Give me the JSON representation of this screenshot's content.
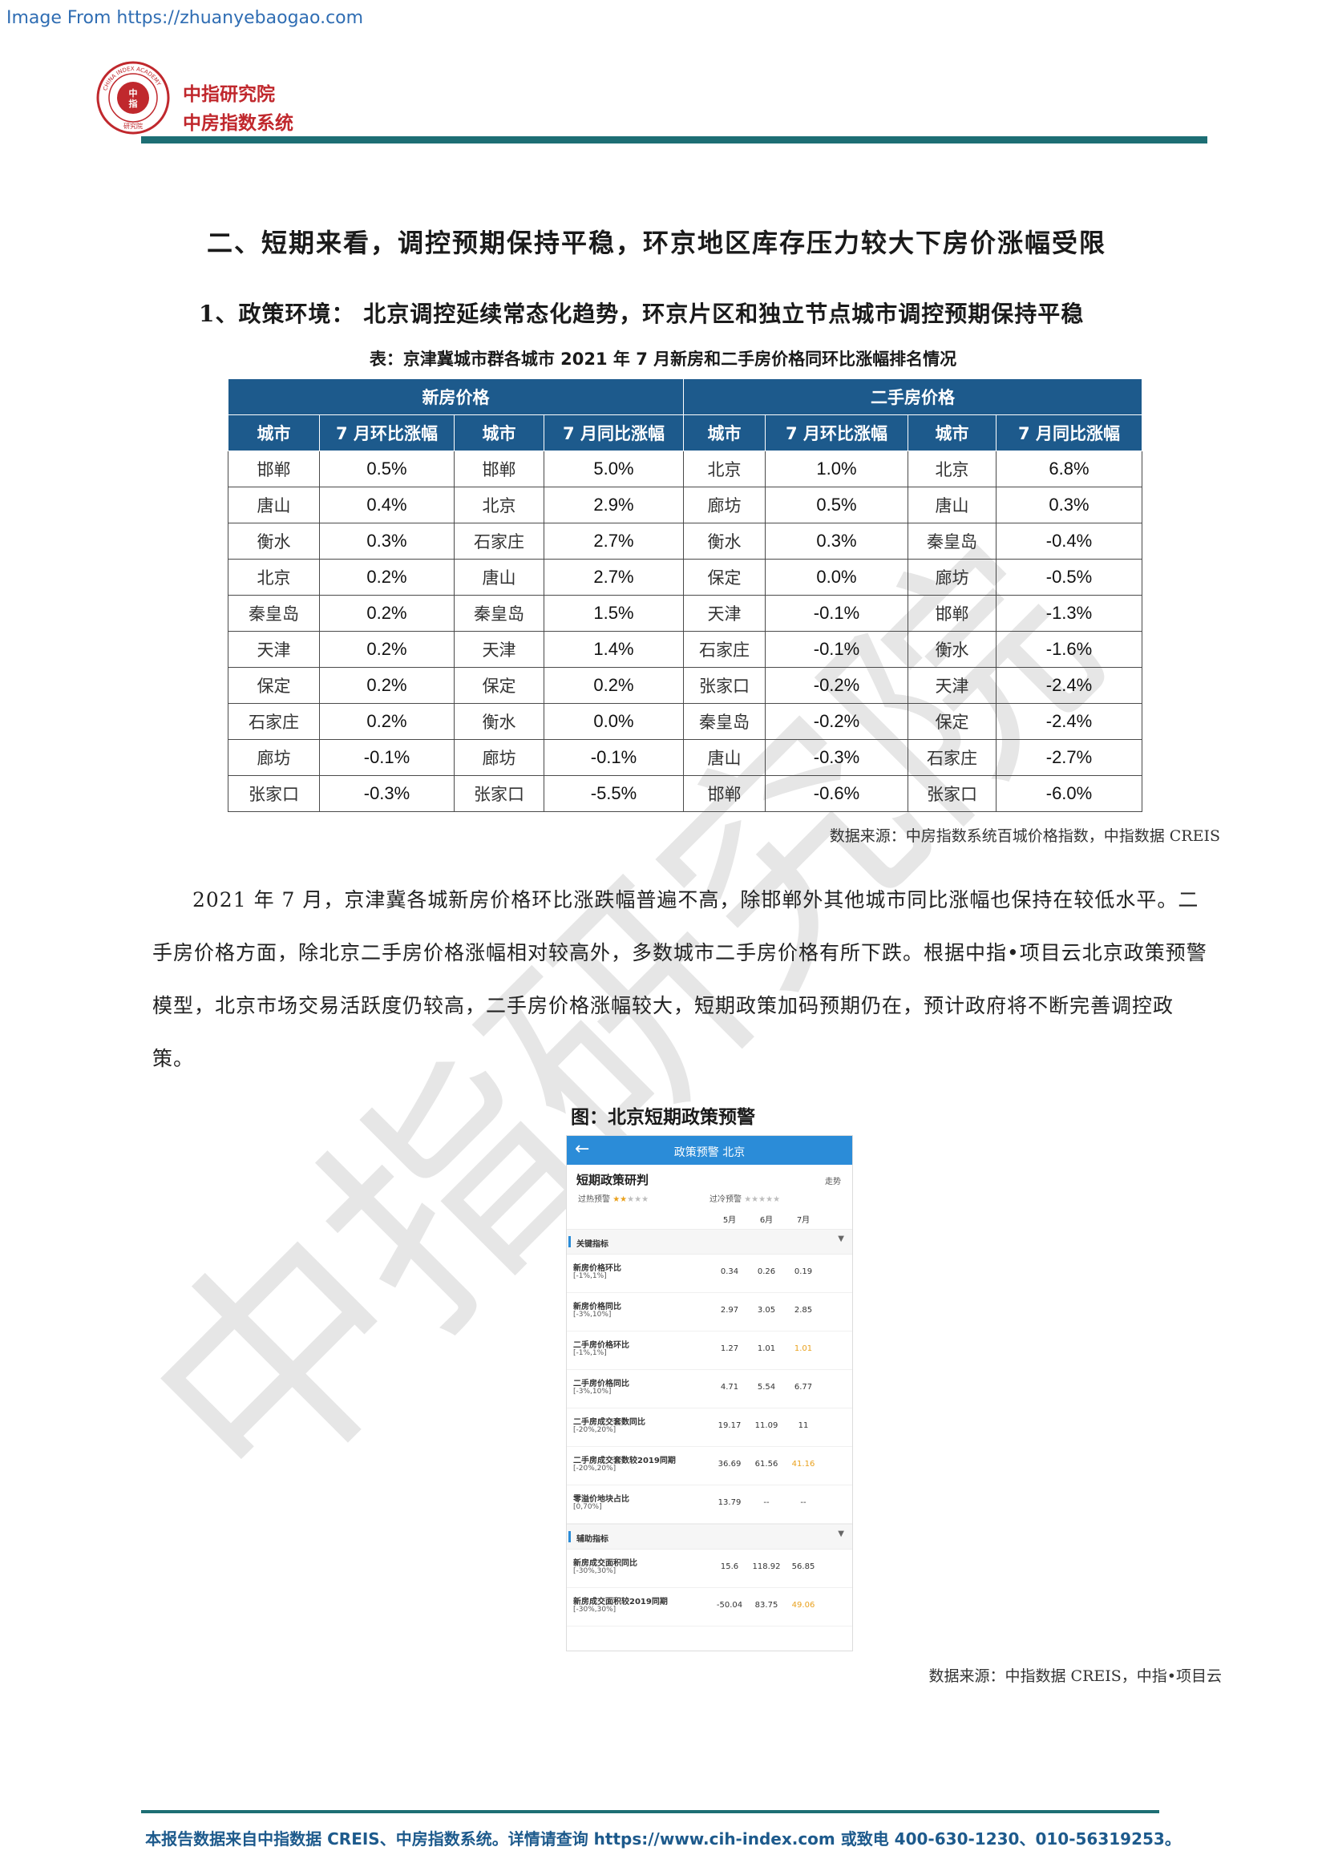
{
  "source_note": "Image From https://zhuanyebaogao.com",
  "header": {
    "brand_line1": "中指研究院",
    "brand_line2": "中房指数系统",
    "logo_ring_text": "CHINA INDEX ACADEMY",
    "logo_center_top": "中",
    "logo_center_bottom": "指",
    "logo_bottom_text": "研究院",
    "accent_color": "#c0282d",
    "rule_color": "#1d6e74"
  },
  "section_title": "二、短期来看，调控预期保持平稳，环京地区库存压力较大下房价涨幅受限",
  "sub_title": "1、政策环境：  北京调控延续常态化趋势，环京片区和独立节点城市调控预期保持平稳",
  "table": {
    "caption": "表：京津冀城市群各城市 2021 年 7 月新房和二手房价格同环比涨幅排名情况",
    "group_headers": [
      "新房价格",
      "二手房价格"
    ],
    "column_headers": [
      "城市",
      "7 月环比涨幅",
      "城市",
      "7 月同比涨幅",
      "城市",
      "7 月环比涨幅",
      "城市",
      "7 月同比涨幅"
    ],
    "rows": [
      [
        "邯郸",
        "0.5%",
        "邯郸",
        "5.0%",
        "北京",
        "1.0%",
        "北京",
        "6.8%"
      ],
      [
        "唐山",
        "0.4%",
        "北京",
        "2.9%",
        "廊坊",
        "0.5%",
        "唐山",
        "0.3%"
      ],
      [
        "衡水",
        "0.3%",
        "石家庄",
        "2.7%",
        "衡水",
        "0.3%",
        "秦皇岛",
        "-0.4%"
      ],
      [
        "北京",
        "0.2%",
        "唐山",
        "2.7%",
        "保定",
        "0.0%",
        "廊坊",
        "-0.5%"
      ],
      [
        "秦皇岛",
        "0.2%",
        "秦皇岛",
        "1.5%",
        "天津",
        "-0.1%",
        "邯郸",
        "-1.3%"
      ],
      [
        "天津",
        "0.2%",
        "天津",
        "1.4%",
        "石家庄",
        "-0.1%",
        "衡水",
        "-1.6%"
      ],
      [
        "保定",
        "0.2%",
        "保定",
        "0.2%",
        "张家口",
        "-0.2%",
        "天津",
        "-2.4%"
      ],
      [
        "石家庄",
        "0.2%",
        "衡水",
        "0.0%",
        "秦皇岛",
        "-0.2%",
        "保定",
        "-2.4%"
      ],
      [
        "廊坊",
        "-0.1%",
        "廊坊",
        "-0.1%",
        "唐山",
        "-0.3%",
        "石家庄",
        "-2.7%"
      ],
      [
        "张家口",
        "-0.3%",
        "张家口",
        "-5.5%",
        "邯郸",
        "-0.6%",
        "张家口",
        "-6.0%"
      ]
    ],
    "source": "数据来源：中房指数系统百城价格指数，中指数据 CREIS",
    "header_color": "#1d5a8c"
  },
  "paragraph": "2021 年 7 月，京津冀各城新房价格环比涨跌幅普遍不高，除邯郸外其他城市同比涨幅也保持在较低水平。二手房价格方面，除北京二手房价格涨幅相对较高外，多数城市二手房价格有所下跌。根据中指•项目云北京政策预警模型，北京市场交易活跃度仍较高，二手房价格涨幅较大，短期政策加码预期仍在，预计政府将不断完善调控政策。",
  "figure": {
    "caption": "图：北京短期政策预警",
    "phone": {
      "back_icon": "arrow-left-icon",
      "title": "政策预警  北京",
      "heading": "短期政策研判",
      "trend_link": "走势",
      "hot_label": "过热预警",
      "hot_stars": 2,
      "cold_label": "过冷预警",
      "cold_stars": 0,
      "star_total": 5,
      "months": [
        "5月",
        "6月",
        "7月"
      ],
      "sections": [
        {
          "label": "关键指标",
          "rows": [
            {
              "name": "新房价格环比",
              "range": "[-1%,1%]",
              "values": [
                "0.34",
                "0.26",
                "0.19"
              ],
              "highlight": [
                false,
                false,
                false
              ]
            },
            {
              "name": "新房价格同比",
              "range": "[-3%,10%]",
              "values": [
                "2.97",
                "3.05",
                "2.85"
              ],
              "highlight": [
                false,
                false,
                false
              ]
            },
            {
              "name": "二手房价格环比",
              "range": "[-1%,1%]",
              "values": [
                "1.27",
                "1.01",
                "1.01"
              ],
              "highlight": [
                false,
                false,
                true
              ]
            },
            {
              "name": "二手房价格同比",
              "range": "[-3%,10%]",
              "values": [
                "4.71",
                "5.54",
                "6.77"
              ],
              "highlight": [
                false,
                false,
                false
              ]
            },
            {
              "name": "二手房成交套数同比",
              "range": "[-20%,20%]",
              "values": [
                "19.17",
                "11.09",
                "11"
              ],
              "highlight": [
                false,
                false,
                false
              ]
            },
            {
              "name": "二手房成交套数较2019同期",
              "range": "[-20%,20%]",
              "values": [
                "36.69",
                "61.56",
                "41.16"
              ],
              "highlight": [
                false,
                false,
                true
              ]
            },
            {
              "name": "零溢价地块占比",
              "range": "[0,70%]",
              "values": [
                "13.79",
                "--",
                "--"
              ],
              "highlight": [
                false,
                false,
                false
              ]
            }
          ]
        },
        {
          "label": "辅助指标",
          "rows": [
            {
              "name": "新房成交面积同比",
              "range": "[-30%,30%]",
              "values": [
                "15.6",
                "118.92",
                "56.85"
              ],
              "highlight": [
                false,
                false,
                false
              ]
            },
            {
              "name": "新房成交面积较2019同期",
              "range": "[-30%,30%]",
              "values": [
                "-50.04",
                "83.75",
                "49.06"
              ],
              "highlight": [
                false,
                false,
                true
              ]
            }
          ]
        }
      ],
      "highlight_color": "#e9a11d",
      "bar_color": "#2b8cd8"
    },
    "source": "数据来源：中指数据 CREIS，中指•项目云"
  },
  "watermark": "中指研究院",
  "footer": "本报告数据来自中指数据 CREIS、中房指数系统。详情请查询 https://www.cih-index.com 或致电 400-630-1230、010-56319253。"
}
